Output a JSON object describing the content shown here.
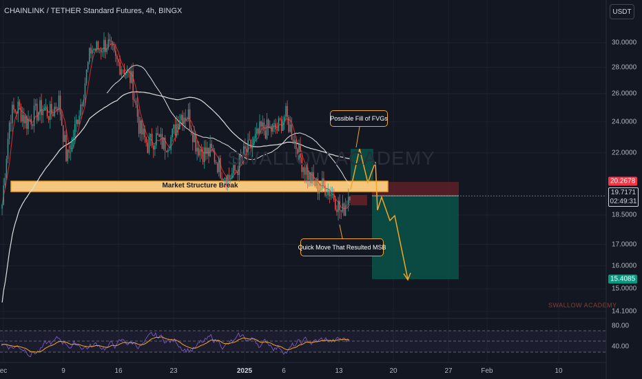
{
  "header": {
    "title": "CHAINLINK / TETHER Standard Futures, 4h, BINGX",
    "currency_button": "USDT"
  },
  "colors": {
    "up": "#26a69a",
    "down": "#ef5350",
    "ma_fast": "#d32f2f",
    "ma_mid": "#e0e0e0",
    "ma_slow": "#e0e0e0",
    "accent": "#f5a623",
    "tp_zone": "#0b4f47",
    "sl_zone": "#5a1f27"
  },
  "icons": [],
  "annotations": {
    "msb_label": "Market Structure Break",
    "fvg_label": "Possible Fill of FVGs",
    "quick_move_label": "Quick Move That Resulted MSB",
    "watermark": "SWALLOW ACADEMY",
    "watermark_small": "SWALLOW ACADEMY"
  },
  "price_tags": {
    "stop": "20.2678",
    "current": "19.7171",
    "countdown": "02:49:31",
    "target": "15.4085"
  },
  "y_ticks": [
    "30.0000",
    "28.0000",
    "26.0000",
    "24.0000",
    "22.0000",
    "18.5000",
    "17.0000",
    "16.0000",
    "15.0000",
    "14.1000"
  ],
  "x_ticks": [
    "ec",
    "9",
    "16",
    "23",
    "2025",
    "6",
    "13",
    "20",
    "27",
    "Feb",
    "10"
  ],
  "rsi_ticks": [
    "80.00",
    "40.00"
  ],
  "chart_data": {
    "type": "candlestick",
    "title": "CHAINLINK / TETHER Standard Futures, 4h, BINGX",
    "y_scale": "log",
    "ylim": [
      13.7,
      32.5
    ],
    "x_categories": [
      "Dec 2",
      "Dec 9",
      "Dec 16",
      "Dec 23",
      "2025",
      "Jan 6",
      "Jan 13",
      "Jan 20",
      "Jan 27",
      "Feb",
      "Feb 10"
    ],
    "close_path": [
      [
        "Dec 2",
        19.0
      ],
      [
        "Dec 3",
        24.5
      ],
      [
        "Dec 4",
        25.0
      ],
      [
        "Dec 5",
        24.0
      ],
      [
        "Dec 6",
        24.5
      ],
      [
        "Dec 7",
        25.0
      ],
      [
        "Dec 8",
        24.5
      ],
      [
        "Dec 9",
        25.5
      ],
      [
        "Dec 10",
        21.5
      ],
      [
        "Dec 11",
        23.5
      ],
      [
        "Dec 12",
        26.0
      ],
      [
        "Dec 13",
        29.5
      ],
      [
        "Dec 14",
        29.5
      ],
      [
        "Dec 15",
        30.0
      ],
      [
        "Dec 16",
        28.5
      ],
      [
        "Dec 17",
        28.0
      ],
      [
        "Dec 18",
        27.0
      ],
      [
        "Dec 19",
        23.5
      ],
      [
        "Dec 20",
        22.5
      ],
      [
        "Dec 21",
        23.0
      ],
      [
        "Dec 22",
        22.5
      ],
      [
        "Dec 23",
        23.0
      ],
      [
        "Dec 24",
        24.5
      ],
      [
        "Dec 25",
        24.5
      ],
      [
        "Dec 26",
        22.5
      ],
      [
        "Dec 27",
        22.0
      ],
      [
        "Dec 28",
        22.0
      ],
      [
        "Dec 29",
        21.0
      ],
      [
        "Dec 30",
        20.5
      ],
      [
        "Dec 31",
        21.0
      ],
      [
        "Jan 1",
        22.0
      ],
      [
        "Jan 2",
        22.5
      ],
      [
        "Jan 3",
        23.5
      ],
      [
        "Jan 4",
        23.5
      ],
      [
        "Jan 5",
        23.5
      ],
      [
        "Jan 6",
        24.5
      ],
      [
        "Jan 7",
        23.0
      ],
      [
        "Jan 8",
        21.5
      ],
      [
        "Jan 9",
        20.5
      ],
      [
        "Jan 10",
        20.0
      ],
      [
        "Jan 11",
        20.0
      ],
      [
        "Jan 12",
        19.5
      ],
      [
        "Jan 13",
        18.5
      ],
      [
        "Jan 14",
        19.8
      ]
    ],
    "overlays": [
      {
        "name": "",
        "style": "fast MA (red/green)"
      },
      {
        "name": "",
        "style": "mid MA (white)"
      },
      {
        "name": "",
        "style": "slow MA (white)"
      }
    ],
    "levels": {
      "market_structure_break_zone": [
        19.9,
        20.3
      ],
      "stop_level": 20.2678,
      "current_price": 19.7171,
      "target_level": 15.4085
    },
    "rsi": {
      "ticks": [
        80,
        40
      ]
    }
  }
}
